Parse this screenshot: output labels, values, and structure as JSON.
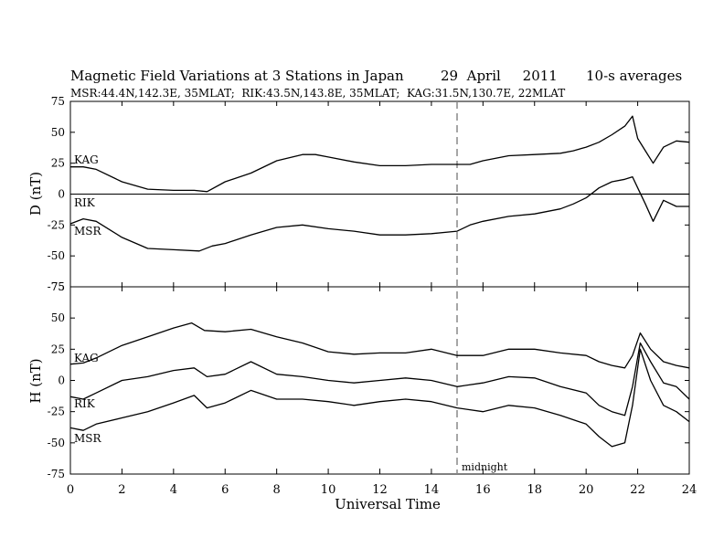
{
  "title": {
    "main": "Magnetic Field Variations at 3 Stations in Japan",
    "date": "29  April     2011",
    "avg": "10-s averages",
    "stations": "MSR:44.4N,142.3E, 35MLAT;  RIK:43.5N,143.8E, 35MLAT;  KAG:31.5N,130.7E, 22MLAT"
  },
  "chart_data": [
    {
      "type": "line",
      "panel": "D",
      "ylabel": "D (nT)",
      "xlim": [
        0,
        24
      ],
      "ylim": [
        -75,
        75
      ],
      "yticks": [
        75,
        50,
        25,
        0,
        -25,
        -50,
        -75
      ],
      "zero_line": true,
      "series": [
        {
          "name": "KAG",
          "x": [
            0,
            0.5,
            1,
            2,
            3,
            4,
            4.8,
            5.3,
            6,
            7,
            8,
            9,
            9.5,
            10,
            11,
            12,
            13,
            14,
            15,
            15.5,
            16,
            17,
            18,
            19,
            19.5,
            20,
            20.5,
            21,
            21.5,
            21.8,
            22,
            22.3,
            22.6,
            23,
            23.5,
            24
          ],
          "y": [
            22,
            22,
            20,
            10,
            4,
            3,
            3,
            2,
            10,
            17,
            27,
            32,
            32,
            30,
            26,
            23,
            23,
            24,
            24,
            24,
            27,
            31,
            32,
            33,
            35,
            38,
            42,
            48,
            55,
            63,
            45,
            35,
            25,
            38,
            43,
            42
          ]
        },
        {
          "name": "RIK",
          "x": [
            20,
            20.5,
            21,
            21.5,
            21.8,
            22,
            22.3,
            22.6,
            23,
            23.5,
            24
          ],
          "y": [
            0,
            0,
            0,
            0,
            0,
            0,
            0,
            0,
            0,
            0,
            0
          ]
        },
        {
          "name": "MSR",
          "x": [
            0,
            0.5,
            1,
            2,
            3,
            4,
            5,
            5.5,
            6,
            7,
            8,
            9,
            10,
            11,
            12,
            13,
            14,
            15,
            15.5,
            16,
            17,
            18,
            19,
            19.5,
            20,
            20.5,
            21,
            21.5,
            21.8,
            22,
            22.3,
            22.6,
            23,
            23.5,
            24
          ],
          "y": [
            -24,
            -20,
            -22,
            -35,
            -44,
            -45,
            -46,
            -42,
            -40,
            -33,
            -27,
            -25,
            -28,
            -30,
            -33,
            -33,
            -32,
            -30,
            -25,
            -22,
            -18,
            -16,
            -12,
            -8,
            -3,
            5,
            10,
            12,
            14,
            5,
            -8,
            -22,
            -5,
            -10,
            -10
          ]
        }
      ]
    },
    {
      "type": "line",
      "panel": "H",
      "ylabel": "H (nT)",
      "xlabel": "Universal Time",
      "xlim": [
        0,
        24
      ],
      "ylim": [
        -75,
        75
      ],
      "yticks": [
        75,
        50,
        25,
        0,
        -25,
        -50,
        -75
      ],
      "xticks": [
        0,
        2,
        4,
        6,
        8,
        10,
        12,
        14,
        16,
        18,
        20,
        22,
        24
      ],
      "xtick_labels": [
        "0",
        "2",
        "4",
        "6",
        "8",
        "10",
        "12",
        "14",
        "16",
        "18",
        "20",
        "22",
        "24"
      ],
      "series": [
        {
          "name": "KAG",
          "x": [
            0,
            0.5,
            1,
            2,
            3,
            4,
            4.7,
            5.2,
            6,
            7,
            8,
            9,
            10,
            11,
            12,
            13,
            14,
            15,
            16,
            17,
            18,
            19,
            20,
            20.5,
            21,
            21.5,
            21.8,
            22.1,
            22.5,
            23,
            23.5,
            24
          ],
          "y": [
            13,
            14,
            18,
            28,
            35,
            42,
            46,
            40,
            39,
            41,
            35,
            30,
            23,
            21,
            22,
            22,
            25,
            20,
            20,
            25,
            25,
            22,
            20,
            15,
            12,
            10,
            20,
            38,
            25,
            15,
            12,
            10
          ]
        },
        {
          "name": "RIK",
          "x": [
            0,
            0.5,
            1,
            2,
            3,
            4,
            4.8,
            5.3,
            6,
            7,
            8,
            9,
            10,
            11,
            12,
            13,
            14,
            15,
            16,
            17,
            18,
            19,
            20,
            20.5,
            21,
            21.5,
            21.8,
            22.1,
            22.5,
            23,
            23.5,
            24
          ],
          "y": [
            -13,
            -15,
            -10,
            0,
            3,
            8,
            10,
            3,
            5,
            15,
            5,
            3,
            0,
            -2,
            0,
            2,
            0,
            -5,
            -2,
            3,
            2,
            -5,
            -10,
            -20,
            -25,
            -28,
            -5,
            30,
            15,
            -2,
            -5,
            -15
          ]
        },
        {
          "name": "MSR",
          "x": [
            0,
            0.5,
            1,
            2,
            3,
            4,
            4.8,
            5.3,
            6,
            7,
            8,
            9,
            10,
            11,
            12,
            13,
            14,
            15,
            16,
            17,
            18,
            19,
            20,
            20.5,
            21,
            21.5,
            21.8,
            22.1,
            22.5,
            23,
            23.5,
            24
          ],
          "y": [
            -38,
            -40,
            -35,
            -30,
            -25,
            -18,
            -12,
            -22,
            -18,
            -8,
            -15,
            -15,
            -17,
            -20,
            -17,
            -15,
            -17,
            -22,
            -25,
            -20,
            -22,
            -28,
            -35,
            -45,
            -53,
            -50,
            -20,
            25,
            0,
            -20,
            -25,
            -33
          ]
        }
      ]
    }
  ],
  "labels": {
    "d_kag": "KAG",
    "d_rik": "RIK",
    "d_msr": "MSR",
    "h_kag": "KAG",
    "h_rik": "RIK",
    "h_msr": "MSR",
    "midnight": "midnight"
  }
}
